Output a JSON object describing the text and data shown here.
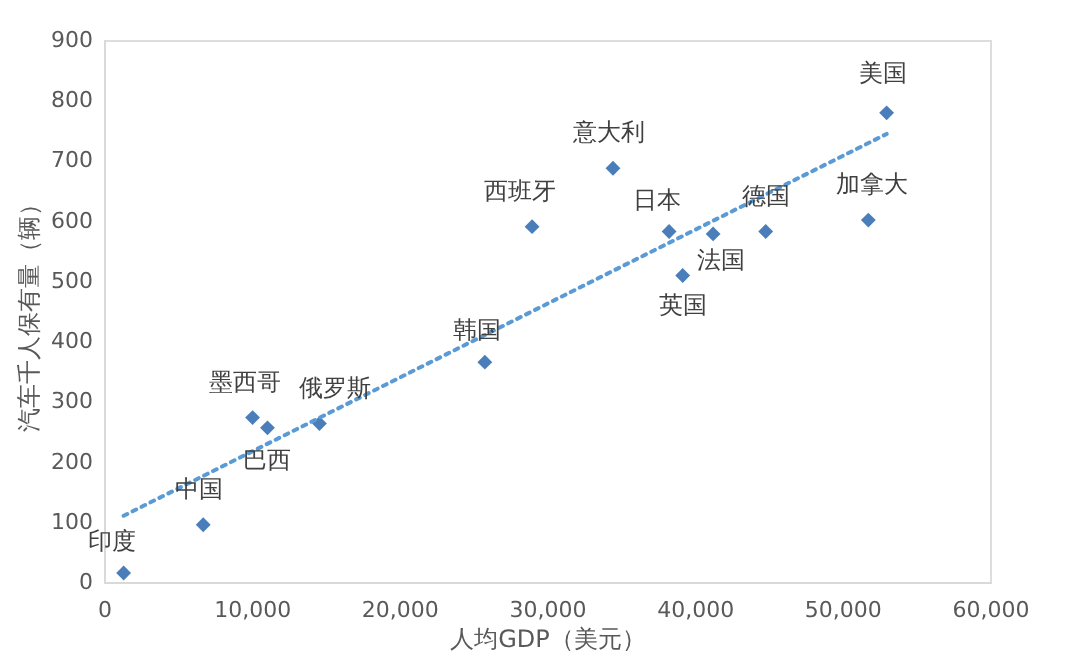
{
  "chart_data": {
    "type": "scatter",
    "xlabel": "人均GDP（美元）",
    "ylabel": "汽车千人保有量（辆）",
    "xlim": [
      0,
      60000
    ],
    "xticks": [
      {
        "value": 0,
        "label": "0"
      },
      {
        "value": 10000,
        "label": "10,000"
      },
      {
        "value": 20000,
        "label": "20,000"
      },
      {
        "value": 30000,
        "label": "30,000"
      },
      {
        "value": 40000,
        "label": "40,000"
      },
      {
        "value": 50000,
        "label": "50,000"
      },
      {
        "value": 60000,
        "label": "60,000"
      }
    ],
    "ylim": [
      0,
      900
    ],
    "yticks": [
      0,
      100,
      200,
      300,
      400,
      500,
      600,
      700,
      800,
      900
    ],
    "grid": false,
    "series": [
      {
        "type": "scatter",
        "color": "#4a7ebb",
        "marker": "diamond",
        "x": [
          1330,
          6720,
          10060,
          11070,
          14590,
          25790,
          28990,
          34470,
          38270,
          41250,
          39190,
          44810,
          51760,
          53000
        ],
        "values": [
          15,
          95,
          273,
          256,
          263,
          365,
          590,
          687,
          582,
          578,
          509,
          582,
          601,
          779
        ]
      },
      {
        "type": "line",
        "color": "#5b9bd5",
        "line_style": "dotted",
        "x": [
          1330,
          53000
        ],
        "values": [
          110,
          744
        ]
      }
    ],
    "annotations": [
      {
        "text": "印度",
        "x": 1330,
        "y": 15
      },
      {
        "text": "中国",
        "x": 6720,
        "y": 95
      },
      {
        "text": "墨西哥",
        "x": 10060,
        "y": 273
      },
      {
        "text": "巴西",
        "x": 11070,
        "y": 256
      },
      {
        "text": "俄罗斯",
        "x": 14590,
        "y": 263
      },
      {
        "text": "韩国",
        "x": 25790,
        "y": 365
      },
      {
        "text": "西班牙",
        "x": 28990,
        "y": 590
      },
      {
        "text": "意大利",
        "x": 34470,
        "y": 687
      },
      {
        "text": "日本",
        "x": 38270,
        "y": 582
      },
      {
        "text": "法国",
        "x": 41250,
        "y": 578
      },
      {
        "text": "英国",
        "x": 39190,
        "y": 509
      },
      {
        "text": "德国",
        "x": 44810,
        "y": 582
      },
      {
        "text": "加拿大",
        "x": 51760,
        "y": 601
      },
      {
        "text": "美国",
        "x": 53000,
        "y": 779
      }
    ]
  }
}
